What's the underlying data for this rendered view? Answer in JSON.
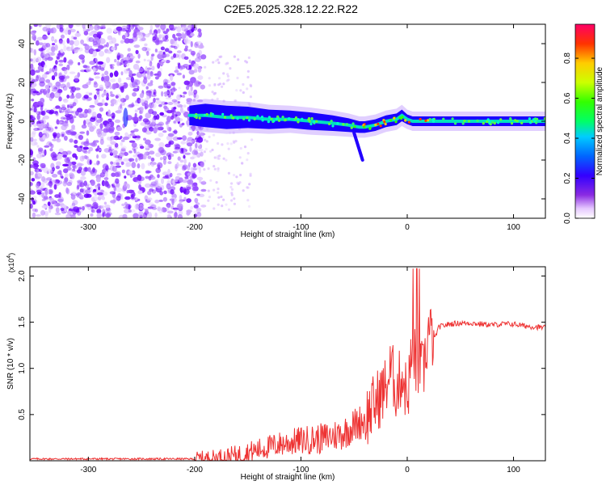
{
  "title": "C2E5.2025.328.12.22.R22",
  "chart_data": [
    {
      "type": "heatmap",
      "xlabel": "Height of straight line (km)",
      "ylabel": "Frequency (Hz)",
      "xlim": [
        -355,
        130
      ],
      "ylim": [
        -50,
        50
      ],
      "xticks": [
        -300,
        -200,
        -100,
        0,
        100
      ],
      "yticks": [
        -40,
        -20,
        0,
        20,
        40
      ],
      "colorbar": {
        "label": "Normalized spectral amplitude",
        "range": [
          0,
          0.97
        ],
        "ticks": [
          0.0,
          0.2,
          0.4,
          0.6,
          0.8
        ]
      }
    },
    {
      "type": "line",
      "xlabel": "Height of straight line (km)",
      "ylabel": "SNR (10 * v/v)",
      "y_multiplier": "(x10^4)",
      "multiplier_base": "(x10",
      "multiplier_exp": "4",
      "xlim": [
        -355,
        130
      ],
      "ylim": [
        0,
        2.1
      ],
      "xticks": [
        -300,
        -200,
        -100,
        0,
        100
      ],
      "yticks": [
        0.5,
        1.0,
        1.5,
        2.0
      ],
      "ytick_labels": [
        "0.5",
        "1.0",
        "1.5",
        "2.0"
      ],
      "color": "#ee3333",
      "x": [
        -355,
        -300,
        -250,
        -200,
        -180,
        -160,
        -140,
        -120,
        -100,
        -80,
        -60,
        -50,
        -40,
        -30,
        -20,
        -15,
        -10,
        -5,
        0,
        5,
        10,
        15,
        20,
        25,
        30,
        40,
        50,
        60,
        70,
        80,
        90,
        100,
        110,
        120,
        130
      ],
      "y": [
        0.02,
        0.02,
        0.02,
        0.02,
        0.03,
        0.06,
        0.12,
        0.18,
        0.22,
        0.24,
        0.3,
        0.38,
        0.45,
        0.62,
        0.8,
        1.0,
        0.75,
        0.95,
        0.7,
        1.2,
        1.0,
        0.95,
        1.4,
        1.3,
        1.45,
        1.48,
        1.49,
        1.49,
        1.48,
        1.47,
        1.48,
        1.48,
        1.46,
        1.45,
        1.44
      ]
    }
  ]
}
